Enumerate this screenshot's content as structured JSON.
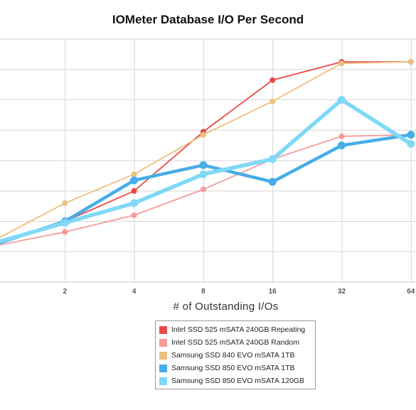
{
  "chart_data": {
    "type": "line",
    "title": "IOMeter Database I/O Per Second",
    "xlabel": "# of Outstanding I/Os",
    "ylabel": "",
    "x_scale": "log2",
    "x": [
      1,
      2,
      4,
      8,
      16,
      32,
      64
    ],
    "x_tick_labels": [
      "2",
      "4",
      "8",
      "16",
      "32",
      "64"
    ],
    "x_tick_values": [
      2,
      4,
      8,
      16,
      32,
      64
    ],
    "ylim": [
      0,
      8
    ],
    "y_gridlines": [
      1,
      2,
      3,
      4,
      5,
      6,
      7,
      8
    ],
    "grid": true,
    "legend_position": "bottom-center",
    "series": [
      {
        "name": "Intel SSD 525 mSATA 240GB Repeating",
        "color": "#e84a4a",
        "values": [
          1.3,
          2.0,
          3.0,
          4.95,
          6.65,
          7.25,
          7.25
        ]
      },
      {
        "name": "Intel SSD 525 mSATA 240GB Random",
        "color": "#f59b9b",
        "values": [
          1.2,
          1.65,
          2.2,
          3.05,
          4.05,
          4.8,
          4.85
        ]
      },
      {
        "name": "Samsung SSD 840 EVO mSATA 1TB",
        "color": "#ecc07e",
        "values": [
          1.4,
          2.6,
          3.55,
          4.85,
          5.95,
          7.2,
          7.25
        ]
      },
      {
        "name": "Samsung SSD 850 EVO mSATA 1TB",
        "color": "#47ade8",
        "values": [
          1.25,
          2.0,
          3.35,
          3.85,
          3.3,
          4.5,
          4.85
        ]
      },
      {
        "name": "Samsung SSD 850 EVO mSATA 120GB",
        "color": "#7fd9f7",
        "values": [
          1.3,
          1.95,
          2.6,
          3.55,
          4.05,
          6.0,
          4.55
        ]
      }
    ]
  }
}
